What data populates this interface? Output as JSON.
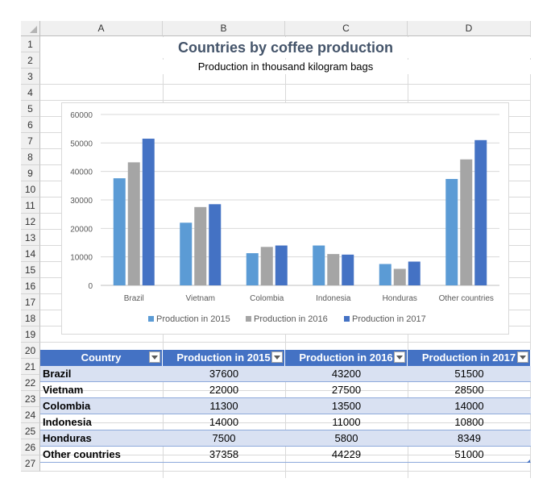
{
  "columns": [
    "A",
    "B",
    "C",
    "D"
  ],
  "rows": [
    "1",
    "2",
    "3",
    "4",
    "5",
    "6",
    "7",
    "8",
    "9",
    "10",
    "11",
    "12",
    "13",
    "14",
    "15",
    "16",
    "17",
    "18",
    "19",
    "20",
    "21",
    "22",
    "23",
    "24",
    "25",
    "26",
    "27"
  ],
  "sheet_title": "Countries by coffee production",
  "sheet_subtitle": "Production in thousand kilogram bags",
  "chart_data": {
    "type": "bar",
    "categories": [
      "Brazil",
      "Vietnam",
      "Colombia",
      "Indonesia",
      "Honduras",
      "Other countries"
    ],
    "series": [
      {
        "name": "Production in 2015",
        "values": [
          37600,
          22000,
          11300,
          14000,
          7500,
          37358
        ],
        "color": "#5b9bd5"
      },
      {
        "name": "Production in 2016",
        "values": [
          43200,
          27500,
          13500,
          11000,
          5800,
          44229
        ],
        "color": "#a5a5a5"
      },
      {
        "name": "Production in 2017",
        "values": [
          51500,
          28500,
          14000,
          10800,
          8349,
          51000
        ],
        "color": "#4472c4"
      }
    ],
    "y_ticks": [
      "0",
      "10000",
      "20000",
      "30000",
      "40000",
      "50000",
      "60000"
    ],
    "ylim": [
      0,
      60000
    ],
    "grid": true,
    "legend": "bottom"
  },
  "table": {
    "headers": [
      "Country",
      "Production in 2015",
      "Production in 2016",
      "Production in 2017"
    ],
    "rows": [
      [
        "Brazil",
        "37600",
        "43200",
        "51500"
      ],
      [
        "Vietnam",
        "22000",
        "27500",
        "28500"
      ],
      [
        "Colombia",
        "11300",
        "13500",
        "14000"
      ],
      [
        "Indonesia",
        "14000",
        "11000",
        "10800"
      ],
      [
        "Honduras",
        "7500",
        "5800",
        "8349"
      ],
      [
        "Other countries",
        "37358",
        "44229",
        "51000"
      ]
    ]
  }
}
